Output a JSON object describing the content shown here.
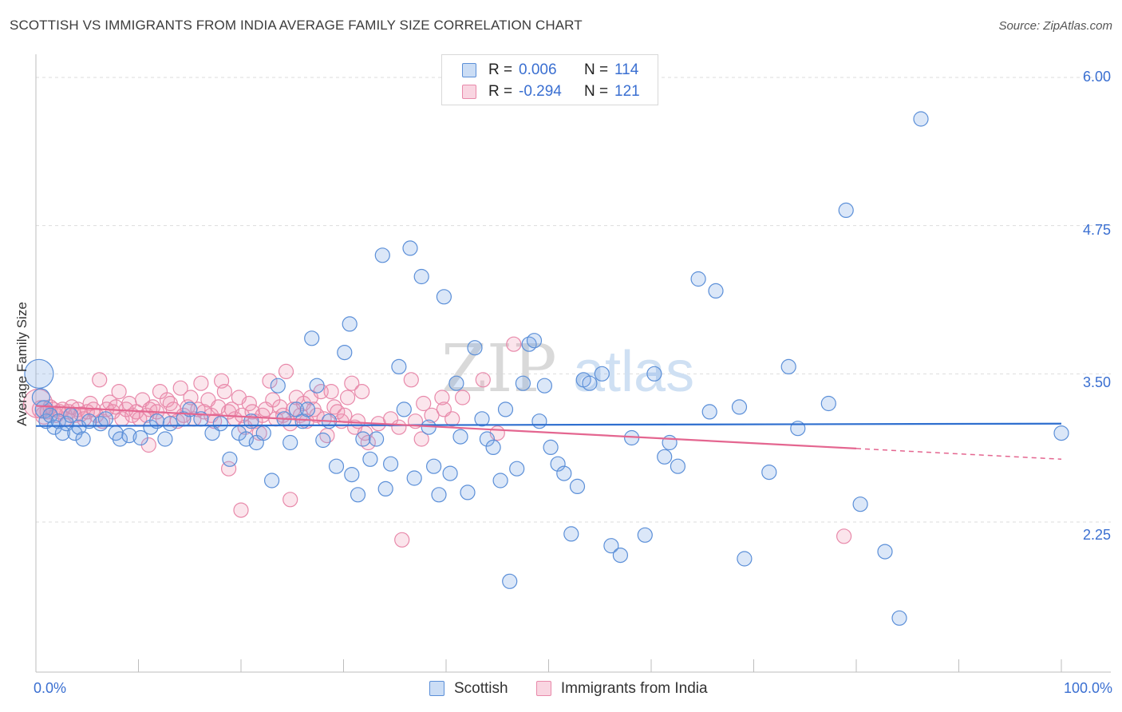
{
  "header": {
    "title": "SCOTTISH VS IMMIGRANTS FROM INDIA AVERAGE FAMILY SIZE CORRELATION CHART",
    "source": "Source: ZipAtlas.com"
  },
  "watermark": {
    "part1": "ZIP",
    "part2": "atlas"
  },
  "legend_top": {
    "rows": [
      {
        "r_label": "R =",
        "r_value": "0.006",
        "n_label": "N =",
        "n_value": "114"
      },
      {
        "r_label": "R =",
        "r_value": "-0.294",
        "n_label": "N =",
        "n_value": "121"
      }
    ]
  },
  "legend_bottom": {
    "items": [
      "Scottish",
      "Immigrants from India"
    ]
  },
  "axes": {
    "ylabel": "Average Family Size",
    "x_left_label": "0.0%",
    "x_right_label": "100.0%",
    "y_tick_labels": [
      "6.00",
      "4.75",
      "3.50",
      "2.25"
    ]
  },
  "colors": {
    "scottish_fill": "rgba(126,170,230,0.28)",
    "scottish_stroke": "#5b8fd8",
    "scottish_line": "#2f6fcf",
    "india_fill": "rgba(240,150,180,0.25)",
    "india_stroke": "#e889aa",
    "india_line": "#e46690",
    "tick_text": "#3a6fd1",
    "grid": "#dddddd"
  },
  "chart_data": {
    "type": "scatter",
    "xlim": [
      0,
      100
    ],
    "ylim": [
      1.0,
      6.1
    ],
    "y_ticks": [
      6.0,
      4.75,
      3.5,
      2.25
    ],
    "grid": true,
    "legend_placement": "top-center",
    "series": [
      {
        "name": "Scottish",
        "R": 0.006,
        "N": 114,
        "trend": {
          "x": [
            0,
            100
          ],
          "y": [
            3.06,
            3.08
          ]
        },
        "points": [
          [
            0.3,
            3.5
          ],
          [
            0.5,
            3.3
          ],
          [
            0.8,
            3.2
          ],
          [
            1.0,
            3.1
          ],
          [
            1.4,
            3.15
          ],
          [
            1.8,
            3.05
          ],
          [
            2.2,
            3.1
          ],
          [
            2.6,
            3.0
          ],
          [
            3.0,
            3.08
          ],
          [
            3.4,
            3.15
          ],
          [
            3.8,
            3.0
          ],
          [
            4.2,
            3.05
          ],
          [
            4.6,
            2.95
          ],
          [
            5.2,
            3.1
          ],
          [
            6.3,
            3.08
          ],
          [
            6.8,
            3.12
          ],
          [
            7.8,
            3.0
          ],
          [
            8.2,
            2.95
          ],
          [
            9.1,
            2.98
          ],
          [
            10.2,
            2.96
          ],
          [
            11.2,
            3.05
          ],
          [
            11.8,
            3.1
          ],
          [
            12.6,
            2.95
          ],
          [
            13.1,
            3.08
          ],
          [
            14.4,
            3.12
          ],
          [
            15.0,
            3.2
          ],
          [
            16.1,
            3.12
          ],
          [
            17.2,
            3.0
          ],
          [
            18.0,
            3.08
          ],
          [
            18.9,
            2.78
          ],
          [
            19.8,
            3.0
          ],
          [
            20.5,
            2.95
          ],
          [
            21.0,
            3.1
          ],
          [
            21.5,
            2.92
          ],
          [
            22.2,
            3.0
          ],
          [
            23.0,
            2.6
          ],
          [
            23.6,
            3.4
          ],
          [
            24.2,
            3.12
          ],
          [
            24.8,
            2.92
          ],
          [
            25.4,
            3.2
          ],
          [
            26.0,
            3.1
          ],
          [
            26.5,
            3.2
          ],
          [
            26.9,
            3.8
          ],
          [
            27.4,
            3.4
          ],
          [
            28.0,
            2.94
          ],
          [
            28.6,
            3.1
          ],
          [
            29.3,
            2.72
          ],
          [
            30.1,
            3.68
          ],
          [
            30.6,
            3.92
          ],
          [
            30.8,
            2.65
          ],
          [
            31.4,
            2.48
          ],
          [
            31.9,
            2.95
          ],
          [
            32.6,
            2.78
          ],
          [
            33.2,
            2.95
          ],
          [
            33.8,
            4.5
          ],
          [
            34.1,
            2.53
          ],
          [
            34.6,
            2.74
          ],
          [
            35.4,
            3.56
          ],
          [
            35.9,
            3.2
          ],
          [
            36.5,
            4.56
          ],
          [
            36.9,
            2.62
          ],
          [
            37.6,
            4.32
          ],
          [
            38.3,
            3.05
          ],
          [
            38.8,
            2.72
          ],
          [
            39.3,
            2.48
          ],
          [
            39.8,
            4.15
          ],
          [
            40.4,
            2.66
          ],
          [
            41.0,
            3.42
          ],
          [
            41.4,
            2.97
          ],
          [
            42.1,
            2.5
          ],
          [
            42.8,
            3.72
          ],
          [
            43.5,
            3.12
          ],
          [
            44.0,
            2.95
          ],
          [
            44.6,
            2.88
          ],
          [
            45.3,
            2.6
          ],
          [
            45.8,
            3.2
          ],
          [
            46.2,
            1.75
          ],
          [
            46.9,
            2.7
          ],
          [
            47.5,
            3.42
          ],
          [
            48.1,
            3.75
          ],
          [
            48.6,
            3.78
          ],
          [
            49.1,
            3.1
          ],
          [
            49.6,
            3.4
          ],
          [
            50.2,
            2.88
          ],
          [
            50.9,
            2.74
          ],
          [
            51.5,
            2.66
          ],
          [
            52.2,
            2.15
          ],
          [
            52.8,
            2.55
          ],
          [
            53.4,
            3.45
          ],
          [
            54.0,
            3.42
          ],
          [
            55.2,
            3.5
          ],
          [
            56.1,
            2.05
          ],
          [
            57.0,
            1.97
          ],
          [
            58.1,
            2.96
          ],
          [
            59.4,
            2.14
          ],
          [
            60.3,
            3.5
          ],
          [
            61.3,
            2.8
          ],
          [
            61.8,
            2.92
          ],
          [
            62.6,
            2.72
          ],
          [
            64.6,
            4.3
          ],
          [
            65.7,
            3.18
          ],
          [
            66.3,
            4.2
          ],
          [
            68.6,
            3.22
          ],
          [
            69.1,
            1.94
          ],
          [
            71.5,
            2.67
          ],
          [
            73.4,
            3.56
          ],
          [
            74.3,
            3.04
          ],
          [
            77.3,
            3.25
          ],
          [
            79.0,
            4.88
          ],
          [
            80.4,
            2.4
          ],
          [
            82.8,
            2.0
          ],
          [
            84.2,
            1.44
          ],
          [
            86.3,
            5.65
          ],
          [
            100.0,
            3.0
          ]
        ]
      },
      {
        "name": "Immigrants from India",
        "R": -0.294,
        "N": 121,
        "trend": {
          "x": [
            0,
            80,
            100
          ],
          "y": [
            3.23,
            2.87,
            2.78
          ],
          "solid_until_x": 80
        },
        "points": [
          [
            0.2,
            3.25
          ],
          [
            0.5,
            3.2
          ],
          [
            0.8,
            3.15
          ],
          [
            1.1,
            3.18
          ],
          [
            1.4,
            3.22
          ],
          [
            1.7,
            3.2
          ],
          [
            2.0,
            3.15
          ],
          [
            2.3,
            3.18
          ],
          [
            2.6,
            3.2
          ],
          [
            2.9,
            3.12
          ],
          [
            3.2,
            3.18
          ],
          [
            3.5,
            3.22
          ],
          [
            3.8,
            3.15
          ],
          [
            4.1,
            3.2
          ],
          [
            4.4,
            3.16
          ],
          [
            4.7,
            3.12
          ],
          [
            5.0,
            3.18
          ],
          [
            5.3,
            3.25
          ],
          [
            5.6,
            3.2
          ],
          [
            5.9,
            3.15
          ],
          [
            6.2,
            3.45
          ],
          [
            6.5,
            3.1
          ],
          [
            6.9,
            3.2
          ],
          [
            7.2,
            3.26
          ],
          [
            7.5,
            3.18
          ],
          [
            7.8,
            3.22
          ],
          [
            8.1,
            3.35
          ],
          [
            8.4,
            3.12
          ],
          [
            8.8,
            3.2
          ],
          [
            9.1,
            3.25
          ],
          [
            9.4,
            3.15
          ],
          [
            9.8,
            3.18
          ],
          [
            10.1,
            3.12
          ],
          [
            10.4,
            3.28
          ],
          [
            10.8,
            3.15
          ],
          [
            11.1,
            3.2
          ],
          [
            11.4,
            3.22
          ],
          [
            11.8,
            3.18
          ],
          [
            12.1,
            3.35
          ],
          [
            12.4,
            3.12
          ],
          [
            12.8,
            3.28
          ],
          [
            13.1,
            3.25
          ],
          [
            13.4,
            3.2
          ],
          [
            13.8,
            3.1
          ],
          [
            14.1,
            3.38
          ],
          [
            14.4,
            3.15
          ],
          [
            14.8,
            3.22
          ],
          [
            15.1,
            3.3
          ],
          [
            15.4,
            3.12
          ],
          [
            15.8,
            3.2
          ],
          [
            16.1,
            3.42
          ],
          [
            16.4,
            3.18
          ],
          [
            16.8,
            3.28
          ],
          [
            17.1,
            3.15
          ],
          [
            17.4,
            3.1
          ],
          [
            17.8,
            3.22
          ],
          [
            18.1,
            3.44
          ],
          [
            18.4,
            3.35
          ],
          [
            18.8,
            3.18
          ],
          [
            19.1,
            3.2
          ],
          [
            19.4,
            3.12
          ],
          [
            19.8,
            3.3
          ],
          [
            20.1,
            3.15
          ],
          [
            20.4,
            3.05
          ],
          [
            20.8,
            3.25
          ],
          [
            21.1,
            3.18
          ],
          [
            21.4,
            3.1
          ],
          [
            21.8,
            3.0
          ],
          [
            22.1,
            3.15
          ],
          [
            22.4,
            3.2
          ],
          [
            22.8,
            3.44
          ],
          [
            23.1,
            3.28
          ],
          [
            23.4,
            3.12
          ],
          [
            23.8,
            3.22
          ],
          [
            24.1,
            3.15
          ],
          [
            24.4,
            3.52
          ],
          [
            24.8,
            3.08
          ],
          [
            25.1,
            3.2
          ],
          [
            25.4,
            3.3
          ],
          [
            25.8,
            3.15
          ],
          [
            26.1,
            3.25
          ],
          [
            26.4,
            3.1
          ],
          [
            26.8,
            3.3
          ],
          [
            27.1,
            3.2
          ],
          [
            27.4,
            3.15
          ],
          [
            27.8,
            3.35
          ],
          [
            28.1,
            3.12
          ],
          [
            28.4,
            2.98
          ],
          [
            28.8,
            3.35
          ],
          [
            29.1,
            3.22
          ],
          [
            29.4,
            3.18
          ],
          [
            29.8,
            3.1
          ],
          [
            30.1,
            3.15
          ],
          [
            30.4,
            3.3
          ],
          [
            30.8,
            3.42
          ],
          [
            31.1,
            3.05
          ],
          [
            31.4,
            3.1
          ],
          [
            31.8,
            3.35
          ],
          [
            32.1,
            3.0
          ],
          [
            32.4,
            2.92
          ],
          [
            33.4,
            3.08
          ],
          [
            34.6,
            3.12
          ],
          [
            35.4,
            3.05
          ],
          [
            36.6,
            3.45
          ],
          [
            37.6,
            2.95
          ],
          [
            37.8,
            3.25
          ],
          [
            38.6,
            3.15
          ],
          [
            39.8,
            3.2
          ],
          [
            40.6,
            3.12
          ],
          [
            41.6,
            3.3
          ],
          [
            43.6,
            3.45
          ],
          [
            45.0,
            3.0
          ],
          [
            46.6,
            3.75
          ],
          [
            39.6,
            3.3
          ],
          [
            37.0,
            3.1
          ],
          [
            11.0,
            2.9
          ],
          [
            18.8,
            2.7
          ],
          [
            20.0,
            2.35
          ],
          [
            24.8,
            2.44
          ],
          [
            35.7,
            2.1
          ],
          [
            78.8,
            2.13
          ]
        ]
      }
    ]
  }
}
